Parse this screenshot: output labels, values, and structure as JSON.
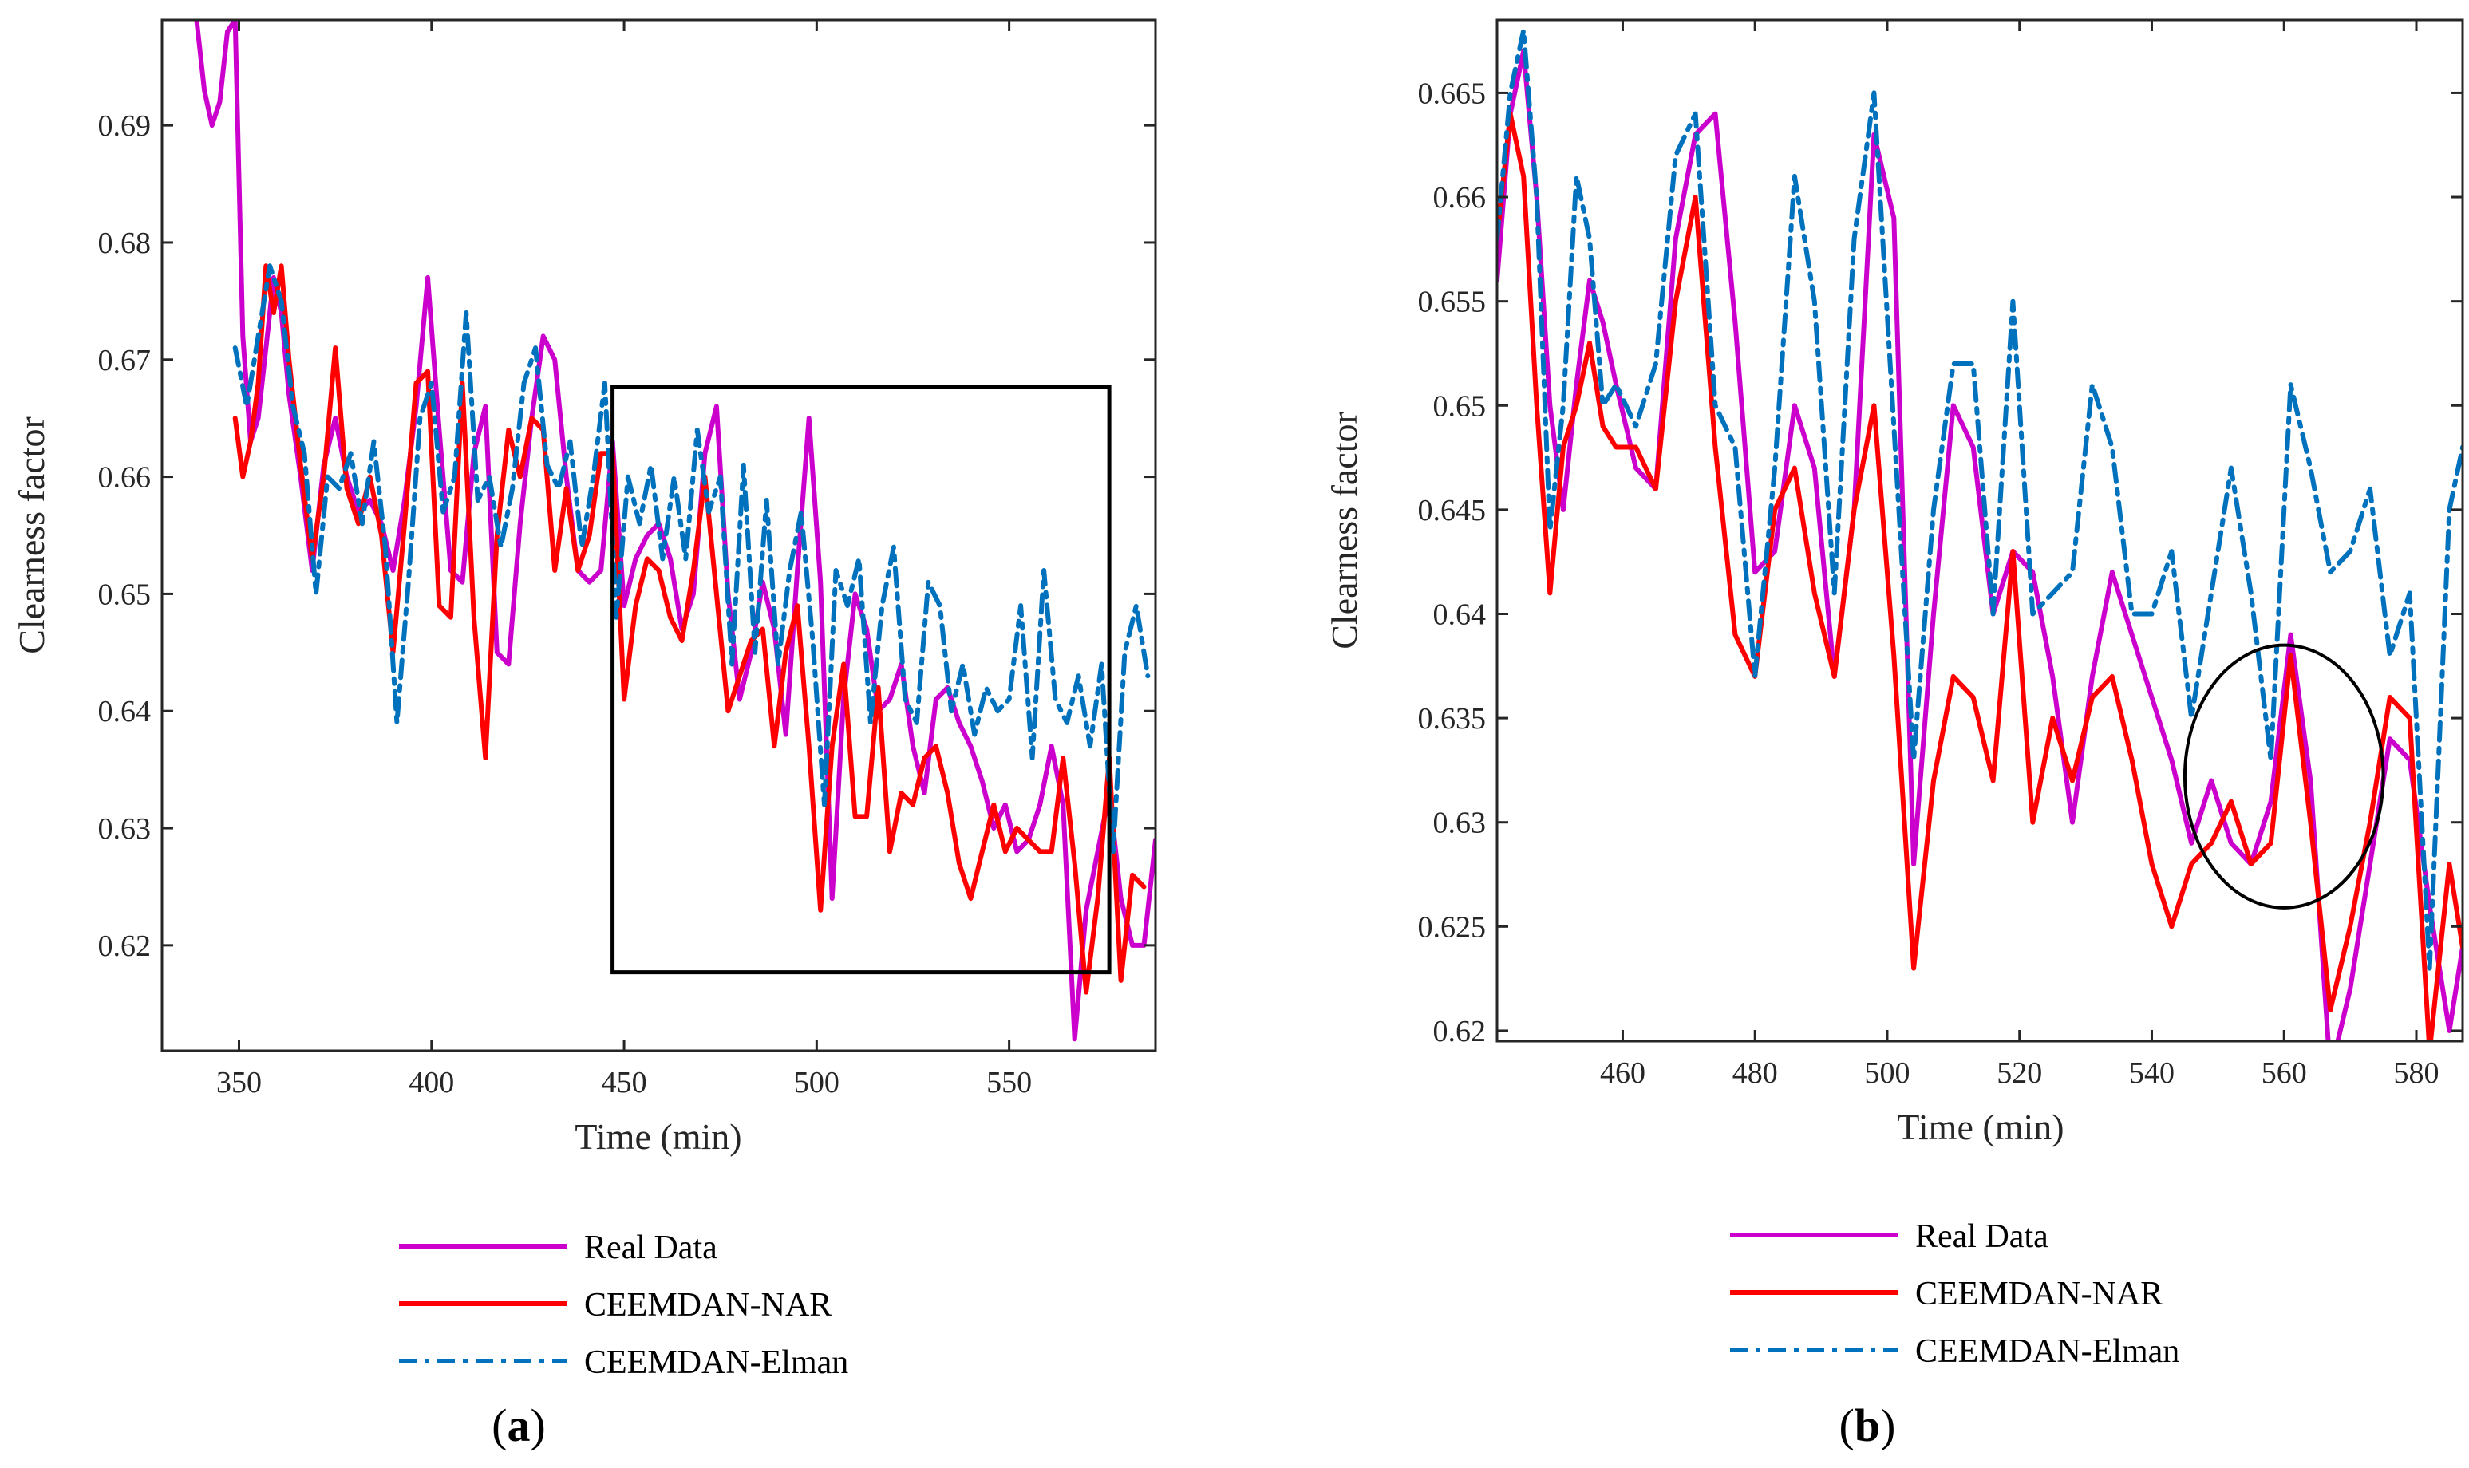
{
  "colors": {
    "real": "#cc00cc",
    "nar": "#ff0000",
    "elman": "#0072bd",
    "axis": "#262626",
    "box": "#000000"
  },
  "chart_data": [
    {
      "type": "line",
      "panel": "(a)",
      "panel_letter": "a",
      "xlabel": "Time (min)",
      "ylabel": "Clearness factor",
      "xlim": [
        330,
        588
      ],
      "ylim": [
        0.611,
        0.699
      ],
      "xticks": [
        350,
        400,
        450,
        500,
        550
      ],
      "yticks": [
        0.62,
        0.63,
        0.64,
        0.65,
        0.66,
        0.67,
        0.68,
        0.69
      ],
      "annotation": {
        "type": "rectangle",
        "x0": 447,
        "x1": 576,
        "y0": 0.6177,
        "y1": 0.6677
      },
      "legend": [
        "Real Data",
        "CEEMDAN-NAR",
        "CEEMDAN-Elman"
      ],
      "series": [
        {
          "name": "Real Data",
          "x": [
            339,
            341,
            343,
            345,
            347,
            349,
            351,
            353,
            355,
            357,
            359,
            361,
            363,
            366,
            369,
            372,
            375,
            378,
            381,
            384,
            387,
            390,
            393,
            396,
            399,
            402,
            405,
            408,
            411,
            414,
            417,
            420,
            423,
            426,
            429,
            432,
            435,
            438,
            441,
            444,
            447,
            450,
            453,
            456,
            459,
            462,
            465,
            468,
            471,
            474,
            477,
            480,
            483,
            486,
            489,
            492,
            495,
            498,
            501,
            504,
            507,
            510,
            513,
            516,
            519,
            522,
            525,
            528,
            531,
            534,
            537,
            540,
            543,
            546,
            549,
            552,
            555,
            558,
            561,
            564,
            567,
            570,
            573,
            576,
            579,
            582,
            585,
            588
          ],
          "y": [
            0.699,
            0.693,
            0.69,
            0.692,
            0.698,
            0.699,
            0.672,
            0.663,
            0.665,
            0.671,
            0.677,
            0.674,
            0.667,
            0.66,
            0.652,
            0.661,
            0.665,
            0.66,
            0.657,
            0.658,
            0.656,
            0.652,
            0.658,
            0.666,
            0.677,
            0.664,
            0.652,
            0.651,
            0.662,
            0.666,
            0.645,
            0.644,
            0.656,
            0.665,
            0.672,
            0.67,
            0.66,
            0.652,
            0.651,
            0.652,
            0.663,
            0.649,
            0.653,
            0.655,
            0.656,
            0.653,
            0.647,
            0.65,
            0.662,
            0.666,
            0.65,
            0.641,
            0.645,
            0.651,
            0.647,
            0.638,
            0.652,
            0.665,
            0.651,
            0.624,
            0.641,
            0.65,
            0.647,
            0.64,
            0.641,
            0.644,
            0.637,
            0.633,
            0.641,
            0.642,
            0.639,
            0.637,
            0.634,
            0.63,
            0.632,
            0.628,
            0.629,
            0.632,
            0.637,
            0.632,
            0.612,
            0.623,
            0.628,
            0.633,
            0.624,
            0.62,
            0.62,
            0.629
          ]
        },
        {
          "name": "CEEMDAN-NAR",
          "x": [
            349,
            351,
            353,
            355,
            357,
            359,
            361,
            363,
            366,
            369,
            372,
            375,
            378,
            381,
            384,
            387,
            390,
            393,
            396,
            399,
            402,
            405,
            408,
            411,
            414,
            417,
            420,
            423,
            426,
            429,
            432,
            435,
            438,
            441,
            444,
            447,
            450,
            453,
            456,
            459,
            462,
            465,
            468,
            471,
            474,
            477,
            480,
            483,
            486,
            489,
            492,
            495,
            498,
            501,
            504,
            507,
            510,
            513,
            516,
            519,
            522,
            525,
            528,
            531,
            534,
            537,
            540,
            543,
            546,
            549,
            552,
            555,
            558,
            561,
            564,
            567,
            570,
            573,
            576,
            579,
            582,
            585
          ],
          "y": [
            0.665,
            0.66,
            0.663,
            0.668,
            0.678,
            0.674,
            0.678,
            0.67,
            0.661,
            0.653,
            0.66,
            0.671,
            0.659,
            0.656,
            0.66,
            0.655,
            0.645,
            0.656,
            0.668,
            0.669,
            0.649,
            0.648,
            0.668,
            0.648,
            0.636,
            0.655,
            0.664,
            0.66,
            0.665,
            0.664,
            0.652,
            0.659,
            0.652,
            0.655,
            0.662,
            0.662,
            0.641,
            0.649,
            0.653,
            0.652,
            0.648,
            0.646,
            0.652,
            0.66,
            0.65,
            0.64,
            0.643,
            0.646,
            0.647,
            0.637,
            0.645,
            0.649,
            0.637,
            0.623,
            0.637,
            0.644,
            0.631,
            0.631,
            0.642,
            0.628,
            0.633,
            0.632,
            0.636,
            0.637,
            0.633,
            0.627,
            0.624,
            0.628,
            0.632,
            0.628,
            0.63,
            0.629,
            0.628,
            0.628,
            0.636,
            0.627,
            0.616,
            0.624,
            0.636,
            0.617,
            0.626,
            0.625
          ]
        },
        {
          "name": "CEEMDAN-Elman",
          "x": [
            349,
            352,
            355,
            358,
            361,
            364,
            367,
            370,
            373,
            376,
            379,
            382,
            385,
            388,
            391,
            394,
            397,
            400,
            403,
            406,
            409,
            412,
            415,
            418,
            421,
            424,
            427,
            430,
            433,
            436,
            439,
            442,
            445,
            448,
            451,
            454,
            457,
            460,
            463,
            466,
            469,
            472,
            475,
            478,
            481,
            484,
            487,
            490,
            493,
            496,
            499,
            502,
            505,
            508,
            511,
            514,
            517,
            520,
            523,
            526,
            529,
            532,
            535,
            538,
            541,
            544,
            547,
            550,
            553,
            556,
            559,
            562,
            565,
            568,
            571,
            574,
            577,
            580,
            583,
            586
          ],
          "y": [
            0.671,
            0.666,
            0.672,
            0.678,
            0.675,
            0.666,
            0.662,
            0.65,
            0.66,
            0.659,
            0.662,
            0.656,
            0.663,
            0.654,
            0.639,
            0.651,
            0.665,
            0.668,
            0.657,
            0.66,
            0.674,
            0.658,
            0.66,
            0.654,
            0.659,
            0.668,
            0.671,
            0.661,
            0.659,
            0.663,
            0.654,
            0.66,
            0.668,
            0.648,
            0.66,
            0.656,
            0.661,
            0.653,
            0.66,
            0.653,
            0.664,
            0.657,
            0.66,
            0.644,
            0.661,
            0.645,
            0.658,
            0.644,
            0.652,
            0.657,
            0.646,
            0.632,
            0.652,
            0.649,
            0.653,
            0.639,
            0.649,
            0.654,
            0.641,
            0.639,
            0.651,
            0.649,
            0.64,
            0.644,
            0.638,
            0.642,
            0.64,
            0.641,
            0.649,
            0.636,
            0.652,
            0.641,
            0.639,
            0.643,
            0.637,
            0.644,
            0.628,
            0.645,
            0.649,
            0.643
          ]
        }
      ]
    },
    {
      "type": "line",
      "panel": "(b)",
      "panel_letter": "b",
      "xlabel": "Time (min)",
      "ylabel": "Clearness factor",
      "xlim": [
        441,
        587
      ],
      "ylim": [
        0.6195,
        0.6685
      ],
      "xticks": [
        460,
        480,
        500,
        520,
        540,
        560,
        580
      ],
      "yticks": [
        0.62,
        0.625,
        0.63,
        0.635,
        0.64,
        0.645,
        0.65,
        0.655,
        0.66,
        0.665
      ],
      "annotation": {
        "type": "ellipse",
        "cx": 560,
        "cy": 0.6322,
        "rx": 15,
        "ry": 0.0063
      },
      "legend": [
        "Real Data",
        "CEEMDAN-NAR",
        "CEEMDAN-Elman"
      ],
      "series": [
        {
          "name": "Real Data",
          "x": [
            441,
            443,
            445,
            447,
            449,
            451,
            453,
            455,
            457,
            459,
            462,
            465,
            468,
            471,
            474,
            477,
            480,
            483,
            486,
            489,
            492,
            495,
            498,
            501,
            504,
            507,
            510,
            513,
            516,
            519,
            522,
            525,
            528,
            531,
            534,
            537,
            540,
            543,
            546,
            549,
            552,
            555,
            558,
            561,
            564,
            567,
            570,
            573,
            576,
            579,
            582,
            585,
            587
          ],
          "y": [
            0.656,
            0.664,
            0.667,
            0.66,
            0.65,
            0.645,
            0.651,
            0.656,
            0.654,
            0.651,
            0.647,
            0.646,
            0.658,
            0.663,
            0.664,
            0.654,
            0.642,
            0.643,
            0.65,
            0.647,
            0.637,
            0.645,
            0.663,
            0.659,
            0.628,
            0.64,
            0.65,
            0.648,
            0.64,
            0.643,
            0.642,
            0.637,
            0.63,
            0.637,
            0.642,
            0.639,
            0.636,
            0.633,
            0.629,
            0.632,
            0.629,
            0.628,
            0.631,
            0.639,
            0.632,
            0.618,
            0.622,
            0.628,
            0.634,
            0.633,
            0.626,
            0.62,
            0.624
          ]
        },
        {
          "name": "CEEMDAN-NAR",
          "x": [
            441,
            443,
            445,
            447,
            449,
            451,
            453,
            455,
            457,
            459,
            462,
            465,
            468,
            471,
            474,
            477,
            480,
            483,
            486,
            489,
            492,
            495,
            498,
            501,
            504,
            507,
            510,
            513,
            516,
            519,
            522,
            525,
            528,
            531,
            534,
            537,
            540,
            543,
            546,
            549,
            552,
            555,
            558,
            561,
            564,
            567,
            570,
            573,
            576,
            579,
            582,
            585,
            587
          ],
          "y": [
            0.658,
            0.664,
            0.661,
            0.65,
            0.641,
            0.648,
            0.65,
            0.653,
            0.649,
            0.648,
            0.648,
            0.646,
            0.655,
            0.66,
            0.648,
            0.639,
            0.637,
            0.645,
            0.647,
            0.641,
            0.637,
            0.645,
            0.65,
            0.638,
            0.623,
            0.632,
            0.637,
            0.636,
            0.632,
            0.643,
            0.63,
            0.635,
            0.632,
            0.636,
            0.637,
            0.633,
            0.628,
            0.625,
            0.628,
            0.629,
            0.631,
            0.628,
            0.629,
            0.638,
            0.63,
            0.621,
            0.625,
            0.63,
            0.636,
            0.635,
            0.619,
            0.628,
            0.624
          ]
        },
        {
          "name": "CEEMDAN-Elman",
          "x": [
            441,
            443,
            445,
            447,
            449,
            451,
            453,
            455,
            457,
            459,
            462,
            465,
            468,
            471,
            474,
            477,
            480,
            483,
            486,
            489,
            492,
            495,
            498,
            501,
            504,
            507,
            510,
            513,
            516,
            519,
            522,
            525,
            528,
            531,
            534,
            537,
            540,
            543,
            546,
            549,
            552,
            555,
            558,
            561,
            564,
            567,
            570,
            573,
            576,
            579,
            582,
            585,
            587
          ],
          "y": [
            0.658,
            0.665,
            0.668,
            0.66,
            0.644,
            0.65,
            0.661,
            0.658,
            0.65,
            0.651,
            0.649,
            0.652,
            0.662,
            0.664,
            0.65,
            0.648,
            0.637,
            0.647,
            0.661,
            0.655,
            0.641,
            0.658,
            0.665,
            0.649,
            0.633,
            0.645,
            0.652,
            0.652,
            0.64,
            0.655,
            0.64,
            0.641,
            0.642,
            0.651,
            0.648,
            0.64,
            0.64,
            0.643,
            0.635,
            0.641,
            0.647,
            0.641,
            0.633,
            0.651,
            0.647,
            0.642,
            0.643,
            0.646,
            0.638,
            0.641,
            0.623,
            0.645,
            0.648
          ]
        }
      ]
    }
  ]
}
